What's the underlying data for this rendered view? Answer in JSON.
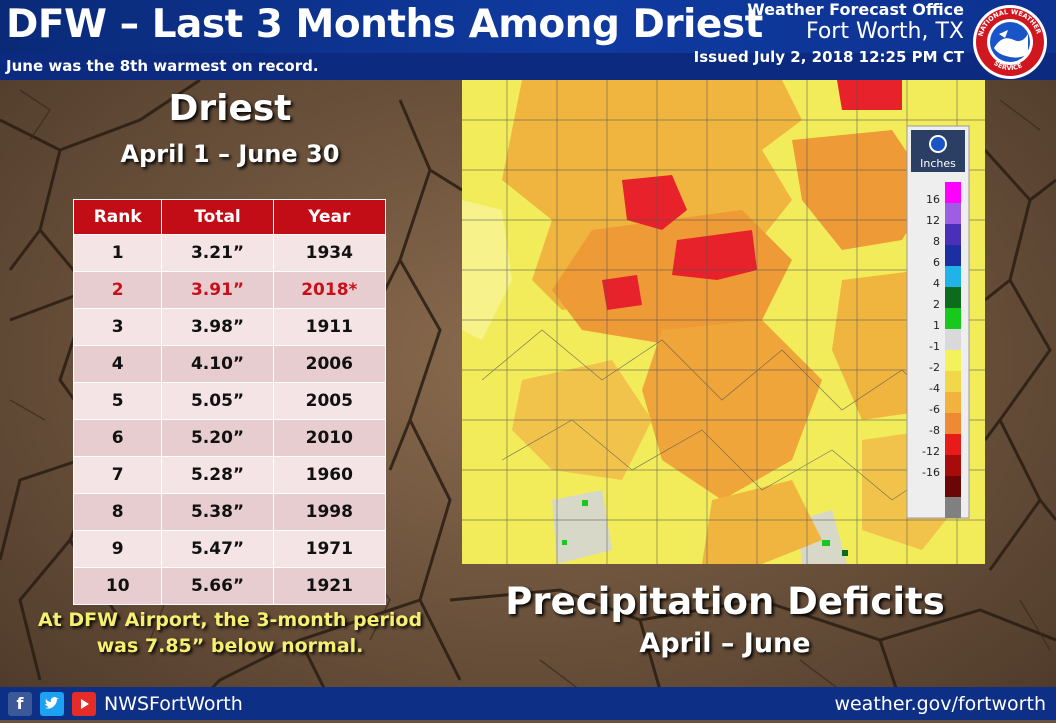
{
  "header": {
    "title": "DFW – Last 3 Months Among Driest",
    "subtitle": "June was the 8th warmest on record.",
    "office_line1": "Weather Forecast Office",
    "office_line2": "Fort Worth, TX",
    "issued": "Issued July 2, 2018 12:25 PM CT",
    "seal_text": "NATIONAL WEATHER SERVICE"
  },
  "left": {
    "heading": "Driest",
    "period": "April 1 – June 30",
    "table": {
      "headers": [
        "Rank",
        "Total",
        "Year"
      ],
      "rows": [
        {
          "rank": "1",
          "total": "3.21”",
          "year": "1934"
        },
        {
          "rank": "2",
          "total": "3.91”",
          "year": "2018*"
        },
        {
          "rank": "3",
          "total": "3.98”",
          "year": "1911"
        },
        {
          "rank": "4",
          "total": "4.10”",
          "year": "2006"
        },
        {
          "rank": "5",
          "total": "5.05”",
          "year": "2005"
        },
        {
          "rank": "6",
          "total": "5.20”",
          "year": "2010"
        },
        {
          "rank": "7",
          "total": "5.28”",
          "year": "1960"
        },
        {
          "rank": "8",
          "total": "5.38”",
          "year": "1998"
        },
        {
          "rank": "9",
          "total": "5.47”",
          "year": "1971"
        },
        {
          "rank": "10",
          "total": "5.66”",
          "year": "1921"
        }
      ]
    },
    "note_line1": "At DFW Airport, the 3-month period",
    "note_line2": "was 7.85” below normal."
  },
  "map": {
    "legend_title": "Inches",
    "legend": [
      {
        "label": "16",
        "color": "#ff00ff"
      },
      {
        "label": "12",
        "color": "#9d5ee3"
      },
      {
        "label": "8",
        "color": "#4a2fb8"
      },
      {
        "label": "6",
        "color": "#1c2fa0"
      },
      {
        "label": "4",
        "color": "#1fb3e8"
      },
      {
        "label": "2",
        "color": "#0c6b1c"
      },
      {
        "label": "1",
        "color": "#19c81c"
      },
      {
        "label": "-1",
        "color": "#d9d9d9"
      },
      {
        "label": "-2",
        "color": "#f4f25c"
      },
      {
        "label": "-4",
        "color": "#f1d84a"
      },
      {
        "label": "-6",
        "color": "#f1b23e"
      },
      {
        "label": "-8",
        "color": "#ee8a34"
      },
      {
        "label": "-12",
        "color": "#e81b1b"
      },
      {
        "label": "-16",
        "color": "#a80b0b"
      },
      {
        "label": "",
        "color": "#6a0606"
      },
      {
        "label": "",
        "color": "#808080"
      }
    ]
  },
  "right": {
    "heading": "Precipitation Deficits",
    "period": "April – June"
  },
  "footer": {
    "handle": "NWSFortWorth",
    "url": "weather.gov/fortworth",
    "facebook_color": "#3b5998",
    "twitter_color": "#1da1f2",
    "youtube_color": "#e52d27"
  }
}
